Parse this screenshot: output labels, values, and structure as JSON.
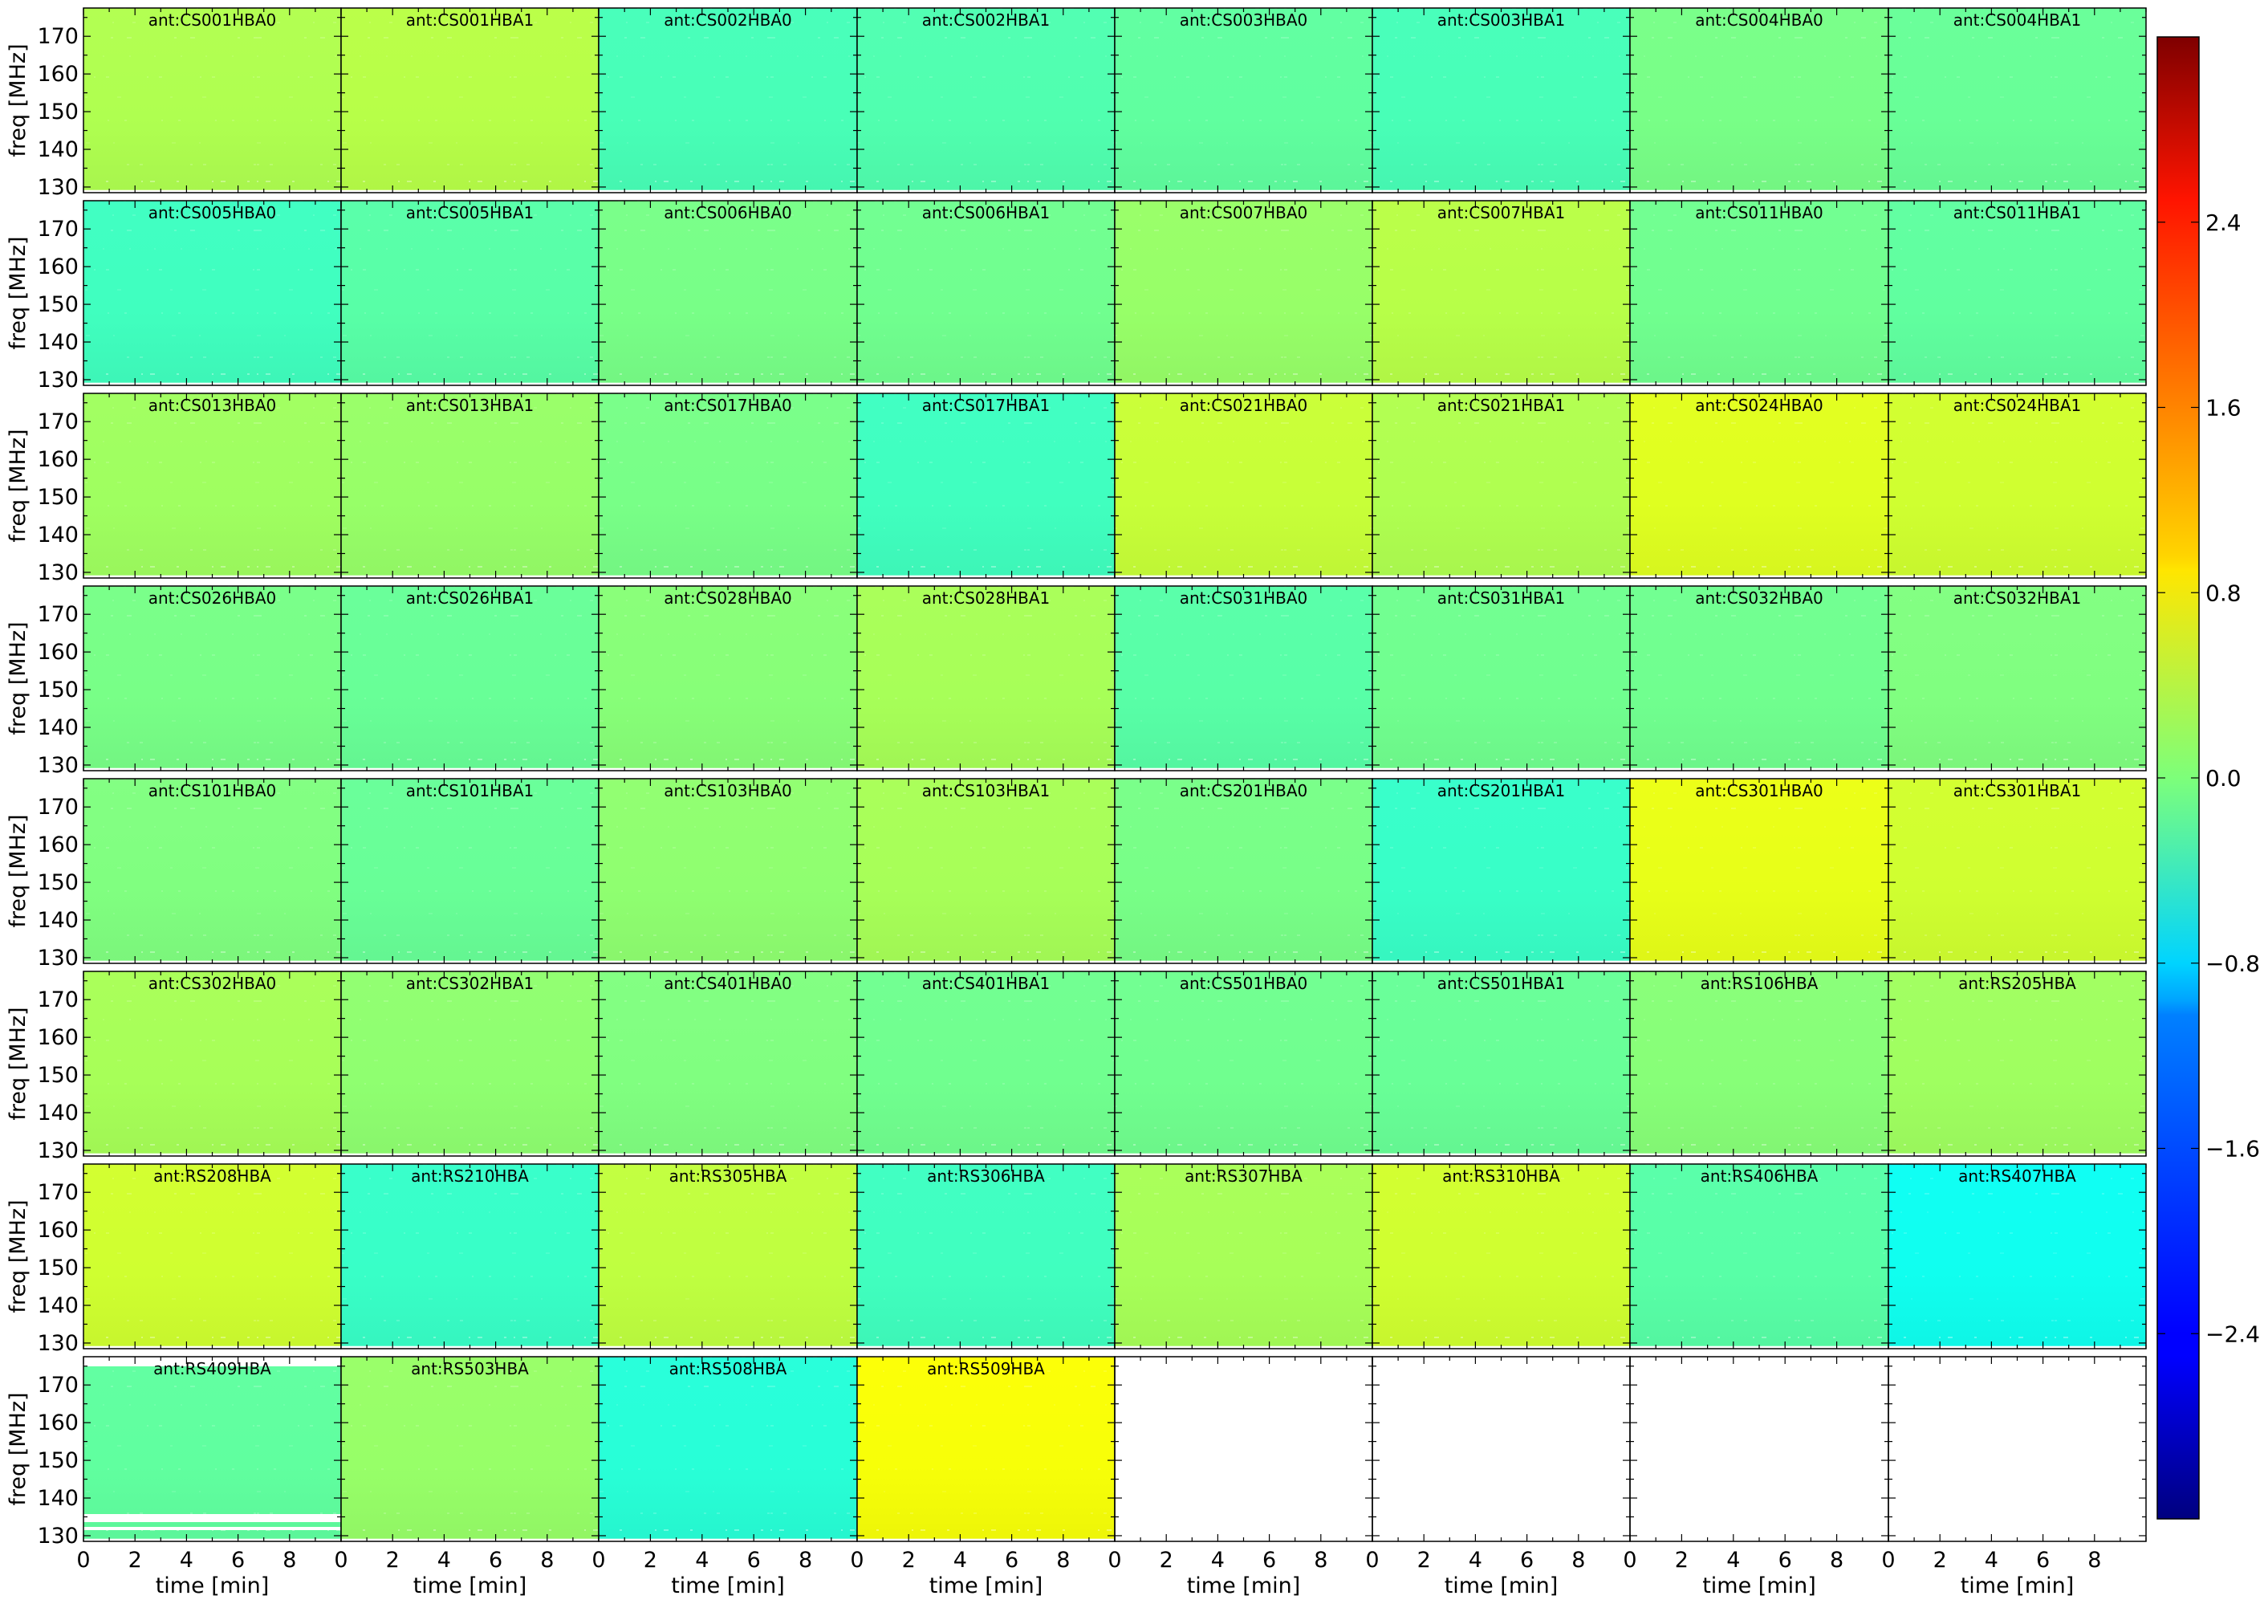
{
  "chart_data": {
    "type": "heatmap",
    "layout": {
      "rows": 8,
      "cols": 8
    },
    "x_axis": {
      "label": "time [min]",
      "range": [
        0,
        10
      ],
      "ticks": [
        "0",
        "2",
        "4",
        "6",
        "8"
      ],
      "tick_values": [
        0,
        2,
        4,
        6,
        8
      ],
      "minor_step": 1
    },
    "y_axis": {
      "label": "freq [MHz]",
      "range": [
        128.5,
        177.5
      ],
      "ticks": [
        "130",
        "140",
        "150",
        "160",
        "170"
      ],
      "tick_values": [
        130,
        140,
        150,
        160,
        170
      ],
      "minor_step": 5
    },
    "colorbar": {
      "range": [
        -3.2,
        3.2
      ],
      "ticks": [
        "2.4",
        "1.6",
        "0.8",
        "0.0",
        "−0.8",
        "−1.6",
        "−2.4"
      ],
      "tick_values": [
        2.4,
        1.6,
        0.8,
        0.0,
        -0.8,
        -1.6,
        -2.4
      ],
      "colormap": "jet"
    },
    "panels": [
      {
        "title": "ant:CS001HBA0",
        "value": 0.3
      },
      {
        "title": "ant:CS001HBA1",
        "value": 0.35
      },
      {
        "title": "ant:CS002HBA0",
        "value": -0.35
      },
      {
        "title": "ant:CS002HBA1",
        "value": -0.3
      },
      {
        "title": "ant:CS003HBA0",
        "value": -0.2
      },
      {
        "title": "ant:CS003HBA1",
        "value": -0.35
      },
      {
        "title": "ant:CS004HBA0",
        "value": -0.05
      },
      {
        "title": "ant:CS004HBA1",
        "value": -0.15
      },
      {
        "title": "ant:CS005HBA0",
        "value": -0.4
      },
      {
        "title": "ant:CS005HBA1",
        "value": -0.25
      },
      {
        "title": "ant:CS006HBA0",
        "value": -0.05
      },
      {
        "title": "ant:CS006HBA1",
        "value": -0.1
      },
      {
        "title": "ant:CS007HBA0",
        "value": 0.15
      },
      {
        "title": "ant:CS007HBA1",
        "value": 0.35
      },
      {
        "title": "ant:CS011HBA0",
        "value": -0.1
      },
      {
        "title": "ant:CS011HBA1",
        "value": -0.2
      },
      {
        "title": "ant:CS013HBA0",
        "value": 0.2
      },
      {
        "title": "ant:CS013HBA1",
        "value": 0.15
      },
      {
        "title": "ant:CS017HBA0",
        "value": -0.05
      },
      {
        "title": "ant:CS017HBA1",
        "value": -0.4
      },
      {
        "title": "ant:CS021HBA0",
        "value": 0.45
      },
      {
        "title": "ant:CS021HBA1",
        "value": 0.3
      },
      {
        "title": "ant:CS024HBA0",
        "value": 0.6
      },
      {
        "title": "ant:CS024HBA1",
        "value": 0.5
      },
      {
        "title": "ant:CS026HBA0",
        "value": -0.05
      },
      {
        "title": "ant:CS026HBA1",
        "value": -0.15
      },
      {
        "title": "ant:CS028HBA0",
        "value": 0.05
      },
      {
        "title": "ant:CS028HBA1",
        "value": 0.25
      },
      {
        "title": "ant:CS031HBA0",
        "value": -0.25
      },
      {
        "title": "ant:CS031HBA1",
        "value": -0.1
      },
      {
        "title": "ant:CS032HBA0",
        "value": -0.1
      },
      {
        "title": "ant:CS032HBA1",
        "value": 0.0
      },
      {
        "title": "ant:CS101HBA0",
        "value": 0.0
      },
      {
        "title": "ant:CS101HBA1",
        "value": -0.15
      },
      {
        "title": "ant:CS103HBA0",
        "value": 0.1
      },
      {
        "title": "ant:CS103HBA1",
        "value": 0.25
      },
      {
        "title": "ant:CS201HBA0",
        "value": -0.05
      },
      {
        "title": "ant:CS201HBA1",
        "value": -0.45
      },
      {
        "title": "ant:CS301HBA0",
        "value": 0.65
      },
      {
        "title": "ant:CS301HBA1",
        "value": 0.5
      },
      {
        "title": "ant:CS302HBA0",
        "value": 0.25
      },
      {
        "title": "ant:CS302HBA1",
        "value": 0.1
      },
      {
        "title": "ant:CS401HBA0",
        "value": 0.0
      },
      {
        "title": "ant:CS401HBA1",
        "value": -0.1
      },
      {
        "title": "ant:CS501HBA0",
        "value": -0.1
      },
      {
        "title": "ant:CS501HBA1",
        "value": -0.15
      },
      {
        "title": "ant:RS106HBA",
        "value": 0.05
      },
      {
        "title": "ant:RS205HBA",
        "value": 0.2
      },
      {
        "title": "ant:RS208HBA",
        "value": 0.5
      },
      {
        "title": "ant:RS210HBA",
        "value": -0.45
      },
      {
        "title": "ant:RS305HBA",
        "value": 0.4
      },
      {
        "title": "ant:RS306HBA",
        "value": -0.4
      },
      {
        "title": "ant:RS307HBA",
        "value": 0.25
      },
      {
        "title": "ant:RS310HBA",
        "value": 0.5
      },
      {
        "title": "ant:RS406HBA",
        "value": -0.25
      },
      {
        "title": "ant:RS407HBA",
        "value": -0.7
      },
      {
        "title": "ant:RS409HBA",
        "value": -0.2
      },
      {
        "title": "ant:RS503HBA",
        "value": 0.15
      },
      {
        "title": "ant:RS508HBA",
        "value": -0.55
      },
      {
        "title": "ant:RS509HBA",
        "value": 0.75
      }
    ],
    "empty_panels": 4
  }
}
